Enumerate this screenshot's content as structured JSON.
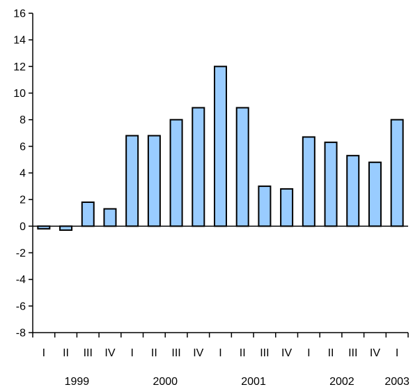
{
  "chart_data": {
    "type": "bar",
    "title": "",
    "xlabel": "",
    "ylabel": "",
    "ylim": [
      -8,
      16
    ],
    "yticks": [
      16,
      14,
      12,
      10,
      8,
      6,
      4,
      2,
      0,
      -2,
      -4,
      -6,
      -8
    ],
    "categories": [
      "I",
      "II",
      "III",
      "IV",
      "I",
      "II",
      "III",
      "IV",
      "I",
      "II",
      "III",
      "IV",
      "I",
      "II",
      "III",
      "IV",
      "I"
    ],
    "years": [
      {
        "label": "1999",
        "start": 0,
        "end": 3
      },
      {
        "label": "2000",
        "start": 4,
        "end": 7
      },
      {
        "label": "2001",
        "start": 8,
        "end": 11
      },
      {
        "label": "2002",
        "start": 12,
        "end": 15
      },
      {
        "label": "2003",
        "start": 16,
        "end": 16
      }
    ],
    "values": [
      -0.2,
      -0.3,
      1.8,
      1.3,
      6.8,
      6.8,
      8.0,
      8.9,
      12.0,
      8.9,
      3.0,
      2.8,
      6.7,
      6.3,
      5.3,
      4.8,
      8.0
    ],
    "bar_color": "#99ccff",
    "grid": false,
    "legend": "none"
  }
}
